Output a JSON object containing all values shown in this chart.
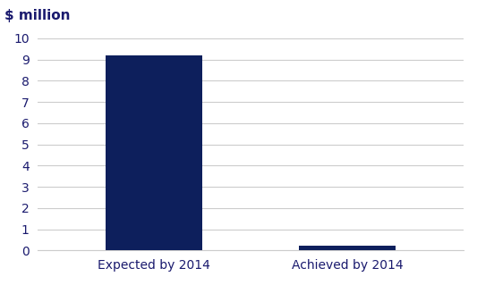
{
  "categories": [
    "Expected by 2014",
    "Achieved by 2014"
  ],
  "values": [
    9.19,
    0.23
  ],
  "bar_color": "#0d1f5c",
  "ylabel_text": "$ million",
  "ylabel_color": "#1a1a6e",
  "tick_label_color": "#1a1a6e",
  "ylim": [
    0,
    10
  ],
  "yticks": [
    0,
    1,
    2,
    3,
    4,
    5,
    6,
    7,
    8,
    9,
    10
  ],
  "bar_width": 0.5,
  "background_color": "#ffffff",
  "grid_color": "#cccccc",
  "tick_fontsize": 10,
  "xlabel_fontsize": 10,
  "ylabel_text_fontsize": 11
}
